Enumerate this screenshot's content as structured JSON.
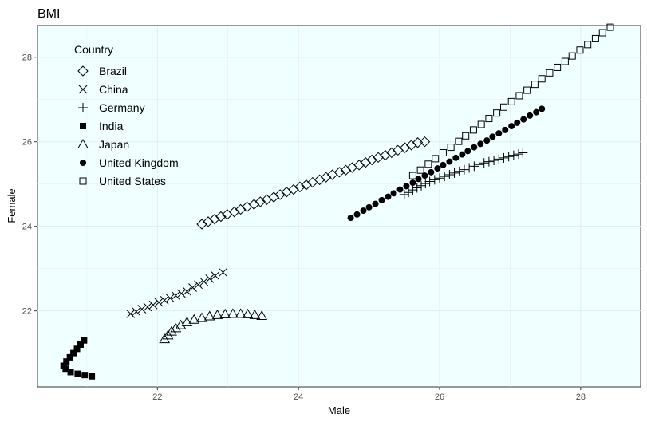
{
  "chart_data": {
    "type": "scatter",
    "title": "BMI",
    "xlabel": "Male",
    "ylabel": "Female",
    "xlim": [
      20.3,
      28.85
    ],
    "ylim": [
      20.2,
      28.75
    ],
    "x_ticks": [
      22,
      24,
      26,
      28
    ],
    "y_ticks": [
      22,
      24,
      26,
      28
    ],
    "panel_background": "#f0ffff",
    "gridline_color": "#e0eeee",
    "grid": true,
    "legend": {
      "title": "Country",
      "position": "top-left"
    },
    "series": [
      {
        "name": "Brazil",
        "shape": "diamond-open",
        "x": [
          22.63,
          22.72,
          22.81,
          22.9,
          22.99,
          23.09,
          23.18,
          23.27,
          23.37,
          23.46,
          23.55,
          23.65,
          23.74,
          23.83,
          23.93,
          24.02,
          24.11,
          24.2,
          24.3,
          24.39,
          24.48,
          24.58,
          24.67,
          24.76,
          24.86,
          24.95,
          25.04,
          25.13,
          25.23,
          25.32,
          25.41,
          25.51,
          25.6,
          25.69,
          25.79
        ],
        "y": [
          24.05,
          24.11,
          24.17,
          24.23,
          24.28,
          24.34,
          24.4,
          24.46,
          24.52,
          24.58,
          24.63,
          24.69,
          24.75,
          24.81,
          24.87,
          24.93,
          24.98,
          25.04,
          25.1,
          25.16,
          25.22,
          25.28,
          25.33,
          25.39,
          25.45,
          25.51,
          25.57,
          25.63,
          25.68,
          25.74,
          25.8,
          25.86,
          25.92,
          25.98,
          26.0
        ]
      },
      {
        "name": "China",
        "shape": "cross",
        "x": [
          21.62,
          21.7,
          21.78,
          21.86,
          21.94,
          22.02,
          22.1,
          22.18,
          22.26,
          22.34,
          22.42,
          22.5,
          22.58,
          22.66,
          22.74,
          22.82,
          22.93
        ],
        "y": [
          21.93,
          21.98,
          22.04,
          22.09,
          22.14,
          22.2,
          22.25,
          22.3,
          22.36,
          22.41,
          22.46,
          22.55,
          22.62,
          22.69,
          22.76,
          22.83,
          22.91
        ]
      },
      {
        "name": "Germany",
        "shape": "plus",
        "x": [
          25.5,
          25.56,
          25.62,
          25.68,
          25.74,
          25.8,
          25.86,
          25.93,
          26.0,
          26.07,
          26.14,
          26.21,
          26.28,
          26.35,
          26.42,
          26.49,
          26.56,
          26.63,
          26.7,
          26.77,
          26.84,
          26.91,
          26.98,
          27.05,
          27.12,
          27.18
        ],
        "y": [
          24.75,
          24.8,
          24.86,
          24.91,
          24.96,
          25.01,
          25.06,
          25.1,
          25.14,
          25.18,
          25.22,
          25.26,
          25.3,
          25.34,
          25.38,
          25.42,
          25.46,
          25.5,
          25.53,
          25.56,
          25.59,
          25.62,
          25.65,
          25.68,
          25.71,
          25.74
        ]
      },
      {
        "name": "India",
        "shape": "square-filled",
        "x": [
          21.07,
          20.97,
          20.87,
          20.77,
          20.7,
          20.67,
          20.71,
          20.76,
          20.81,
          20.86,
          20.91,
          20.96
        ],
        "y": [
          20.45,
          20.48,
          20.51,
          20.55,
          20.63,
          20.7,
          20.8,
          20.9,
          21.0,
          21.1,
          21.2,
          21.3
        ]
      },
      {
        "name": "Japan",
        "shape": "triangle-open",
        "x": [
          22.1,
          22.15,
          22.2,
          22.26,
          22.33,
          22.42,
          22.52,
          22.63,
          22.74,
          22.85,
          22.96,
          23.07,
          23.18,
          23.28,
          23.38,
          23.48
        ],
        "y": [
          21.33,
          21.42,
          21.51,
          21.59,
          21.66,
          21.73,
          21.79,
          21.83,
          21.87,
          21.9,
          21.92,
          21.93,
          21.93,
          21.92,
          21.9,
          21.88
        ]
      },
      {
        "name": "United Kingdom",
        "shape": "circle-filled",
        "x": [
          24.74,
          24.83,
          24.92,
          25.0,
          25.09,
          25.18,
          25.27,
          25.35,
          25.44,
          25.53,
          25.62,
          25.7,
          25.79,
          25.88,
          25.97,
          26.05,
          26.14,
          26.23,
          26.32,
          26.4,
          26.49,
          26.58,
          26.67,
          26.75,
          26.84,
          26.93,
          27.02,
          27.1,
          27.19,
          27.28,
          27.37,
          27.45
        ],
        "y": [
          24.2,
          24.28,
          24.37,
          24.45,
          24.53,
          24.62,
          24.7,
          24.78,
          24.87,
          24.95,
          25.03,
          25.12,
          25.2,
          25.28,
          25.37,
          25.45,
          25.53,
          25.62,
          25.7,
          25.78,
          25.87,
          25.95,
          26.03,
          26.12,
          26.2,
          26.28,
          26.37,
          26.45,
          26.53,
          26.62,
          26.7,
          26.78
        ]
      },
      {
        "name": "United States",
        "shape": "square-open",
        "x": [
          25.62,
          25.73,
          25.84,
          25.94,
          26.05,
          26.16,
          26.27,
          26.37,
          26.48,
          26.59,
          26.7,
          26.81,
          26.91,
          27.02,
          27.13,
          27.24,
          27.35,
          27.45,
          27.56,
          27.67,
          27.78,
          27.88,
          27.99,
          28.1,
          28.21,
          28.31,
          28.42
        ],
        "y": [
          25.2,
          25.33,
          25.47,
          25.6,
          25.74,
          25.87,
          26.01,
          26.14,
          26.28,
          26.41,
          26.55,
          26.68,
          26.82,
          26.95,
          27.09,
          27.22,
          27.36,
          27.49,
          27.63,
          27.76,
          27.9,
          28.03,
          28.17,
          28.3,
          28.44,
          28.58,
          28.71
        ]
      }
    ]
  }
}
